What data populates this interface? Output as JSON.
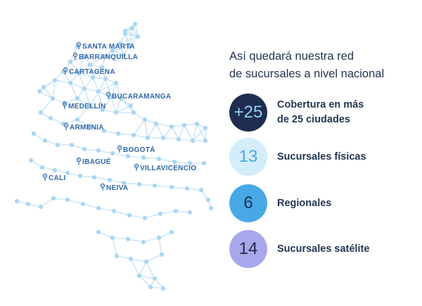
{
  "heading": {
    "line1": "Así quedará nuestra red",
    "line2": "de sucursales a nivel nacional"
  },
  "stats": [
    {
      "value": "+25",
      "label_lines": [
        "Cobertura en más",
        "de 25 ciudades"
      ],
      "bg": "#1f2d4f",
      "fg": "#8fd0f5"
    },
    {
      "value": "13",
      "label_lines": [
        "Sucursales físicas"
      ],
      "bg": "#d4edfb",
      "fg": "#4aa8e3"
    },
    {
      "value": "6",
      "label_lines": [
        "Regionales"
      ],
      "bg": "#48a8e6",
      "fg": "#1f2d4f"
    },
    {
      "value": "14",
      "label_lines": [
        "Sucursales satélite"
      ],
      "bg": "#a9a7ec",
      "fg": "#1f2d4f"
    }
  ],
  "cities": [
    {
      "name": "SANTA MARTA",
      "icon": "map-pin-icon"
    },
    {
      "name": "BARRANQUILLA",
      "icon": "map-pin-icon"
    },
    {
      "name": "CARTAGENA",
      "icon": "map-pin-icon"
    },
    {
      "name": "BUCARAMANGA",
      "icon": "map-pin-icon"
    },
    {
      "name": "MEDELLÍN",
      "icon": "map-pin-icon"
    },
    {
      "name": "ARMENIA",
      "icon": "map-pin-icon"
    },
    {
      "name": "BOGOTÁ",
      "icon": "map-pin-icon"
    },
    {
      "name": "IBAGUÉ",
      "icon": "map-pin-icon"
    },
    {
      "name": "VILLAVICENCIO",
      "icon": "map-pin-icon"
    },
    {
      "name": "CALI",
      "icon": "map-pin-icon"
    },
    {
      "name": "NEIVA",
      "icon": "map-pin-icon"
    }
  ],
  "colors": {
    "network_line": "#cfe6f6",
    "network_node": "#a9d6f2",
    "city_label": "#2f67a8",
    "text_dark": "#243552"
  }
}
